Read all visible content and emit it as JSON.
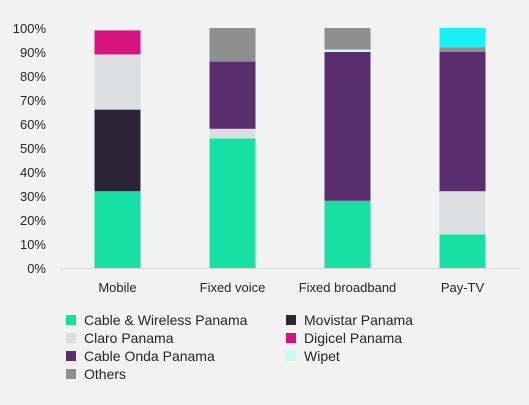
{
  "chart_data": {
    "type": "bar",
    "stacked": true,
    "categories": [
      "Mobile",
      "Fixed voice",
      "Fixed broadband",
      "Pay-TV"
    ],
    "y_ticks": [
      "0%",
      "10%",
      "20%",
      "30%",
      "40%",
      "50%",
      "60%",
      "70%",
      "80%",
      "90%",
      "100%"
    ],
    "ylim": [
      0,
      100
    ],
    "grid": false,
    "legend_position": "bottom",
    "series": [
      {
        "name": "Cable & Wireless Panama",
        "color": "#17e0a5",
        "values": [
          32,
          54,
          28,
          14
        ]
      },
      {
        "name": "Movistar Panama",
        "color": "#2b2536",
        "values": [
          34,
          0,
          0,
          0
        ]
      },
      {
        "name": "Claro Panama",
        "color": "#dcdedf",
        "values": [
          23,
          4,
          0,
          18
        ]
      },
      {
        "name": "Digicel Panama",
        "color": "#d8137f",
        "values": [
          10,
          0,
          0,
          0
        ]
      },
      {
        "name": "Cable Onda Panama",
        "color": "#5b2e6f",
        "values": [
          0,
          28,
          62,
          58
        ]
      },
      {
        "name": "Wipet",
        "color": "#c9fbf3",
        "values": [
          0,
          0,
          1,
          0
        ]
      },
      {
        "name": "Others",
        "color": "#8f8f8f",
        "values": [
          0,
          14,
          9,
          2
        ]
      },
      {
        "name": "",
        "color": "#19f0f2",
        "values": [
          0,
          0,
          0,
          8
        ]
      }
    ]
  }
}
